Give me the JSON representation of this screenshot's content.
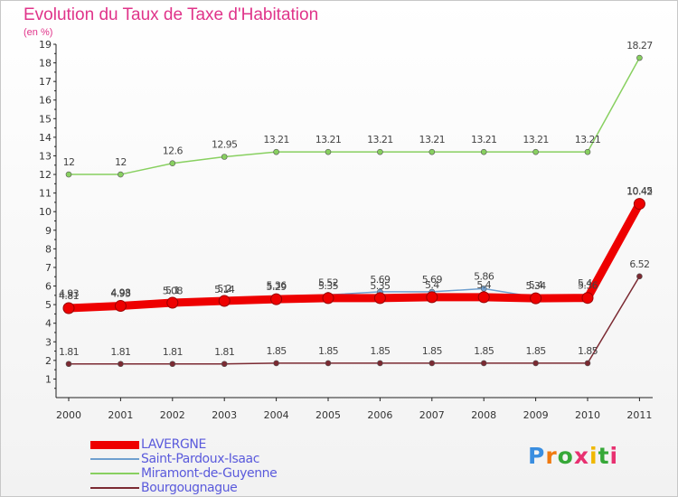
{
  "header": {
    "title": "Evolution du Taux de Taxe d'Habitation",
    "subtitle": "(en %)"
  },
  "chart_data": {
    "type": "line",
    "title": "Evolution du Taux de Taxe d'Habitation",
    "ylabel": "(en %)",
    "xlabel": "",
    "ylim": [
      0,
      19
    ],
    "yticks": [
      1,
      2,
      3,
      4,
      5,
      6,
      7,
      8,
      9,
      10,
      11,
      12,
      13,
      14,
      15,
      16,
      17,
      18,
      19
    ],
    "categories": [
      "2000",
      "2001",
      "2002",
      "2003",
      "2004",
      "2005",
      "2006",
      "2007",
      "2008",
      "2009",
      "2010",
      "2011"
    ],
    "series": [
      {
        "name": "Bourgougnague",
        "color": "#7b2a32",
        "values": [
          1.81,
          1.81,
          1.81,
          1.81,
          1.85,
          1.85,
          1.85,
          1.85,
          1.85,
          1.85,
          1.85,
          6.52
        ],
        "labels": [
          "1.81",
          "1.81",
          "1.81",
          "1.81",
          "1.85",
          "1.85",
          "1.85",
          "1.85",
          "1.85",
          "1.85",
          "1.85",
          "6.52"
        ]
      },
      {
        "name": "Miramont-de-Guyenne",
        "color": "#88d060",
        "values": [
          12,
          12,
          12.6,
          12.95,
          13.21,
          13.21,
          13.21,
          13.21,
          13.21,
          13.21,
          13.21,
          18.27
        ],
        "labels": [
          "12",
          "12",
          "12.6",
          "12.95",
          "13.21",
          "13.21",
          "13.21",
          "13.21",
          "13.21",
          "13.21",
          "13.21",
          "18.27"
        ]
      },
      {
        "name": "Saint-Pardoux-Isaac",
        "color": "#6f9fcf",
        "values": [
          4.93,
          4.98,
          5.08,
          5.14,
          5.36,
          5.52,
          5.69,
          5.69,
          5.86,
          5.4,
          5.49,
          10.45
        ],
        "labels": [
          "4.93",
          "4.98",
          "5.08",
          "5.14",
          "5.36",
          "5.52",
          "5.69",
          "5.69",
          "5.86",
          "5.4",
          "5.49",
          "10.45"
        ]
      },
      {
        "name": "LAVERGNE",
        "color": "#ee0000",
        "values": [
          4.81,
          4.93,
          5.1,
          5.2,
          5.29,
          5.35,
          5.35,
          5.4,
          5.4,
          5.34,
          5.36,
          10.42
        ],
        "labels": [
          "4.81",
          "4.93",
          "5.1",
          "5.2",
          "5.29",
          "5.35",
          "5.35",
          "5.4",
          "5.4",
          "5.34",
          "5.36",
          "10.42"
        ]
      }
    ]
  },
  "legend": {
    "items": [
      {
        "label": "LAVERGNE",
        "color": "#ee0000",
        "thickness": 9
      },
      {
        "label": "Saint-Pardoux-Isaac",
        "color": "#6f9fcf",
        "thickness": 2
      },
      {
        "label": "Miramont-de-Guyenne",
        "color": "#88d060",
        "thickness": 2
      },
      {
        "label": "Bourgougnague",
        "color": "#7b2a32",
        "thickness": 2
      }
    ]
  },
  "logo": {
    "letters": [
      "P",
      "r",
      "o",
      "x",
      "i",
      "t",
      "i"
    ],
    "colors": [
      "#3a8ee0",
      "#f07a10",
      "#36a838",
      "#e83070",
      "#f0b800",
      "#36a838",
      "#e83070"
    ]
  }
}
